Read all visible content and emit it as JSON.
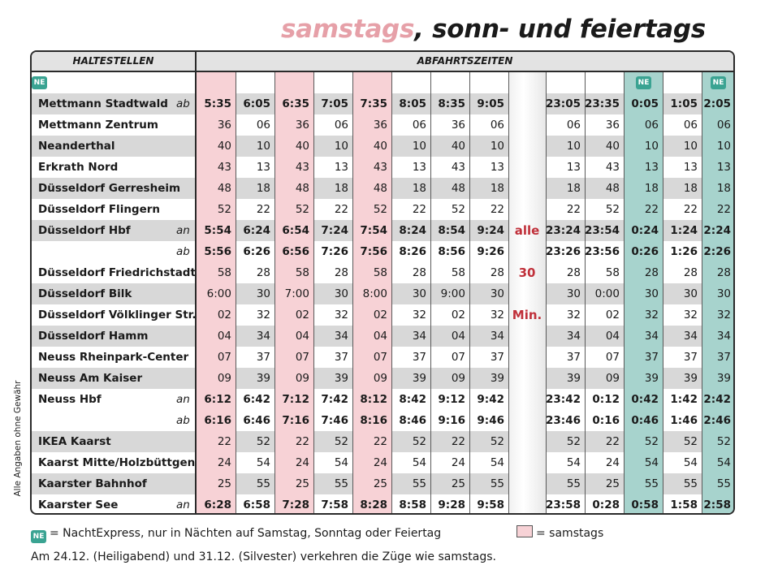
{
  "title": {
    "part1": "samstags",
    "part2": ", sonn- und feiertags"
  },
  "header": {
    "stations": "HALTESTELLEN",
    "times": "ABFAHRTSZEITEN"
  },
  "ne_label": "NE",
  "colors": {
    "pink": "#f7d2d6",
    "green": "#a7d3cd",
    "ne_badge": "#3aa392",
    "alle_red": "#c0303a"
  },
  "ne_columns": [
    10,
    12,
    13
  ],
  "pink_columns": [
    0,
    2,
    4
  ],
  "interval": {
    "line1": "alle",
    "line2": "30",
    "line3": "Min."
  },
  "rows": [
    {
      "station": "Mettmann Stadtwald",
      "mark": "ab",
      "bold": true,
      "times": [
        "5:35",
        "6:05",
        "6:35",
        "7:05",
        "7:35",
        "8:05",
        "8:35",
        "9:05",
        "23:05",
        "23:35",
        "0:05",
        "1:05",
        "2:05"
      ]
    },
    {
      "station": "Mettmann Zentrum",
      "mark": "",
      "bold": false,
      "times": [
        "36",
        "06",
        "36",
        "06",
        "36",
        "06",
        "36",
        "06",
        "06",
        "36",
        "06",
        "06",
        "06"
      ]
    },
    {
      "station": "Neanderthal",
      "mark": "",
      "bold": false,
      "times": [
        "40",
        "10",
        "40",
        "10",
        "40",
        "10",
        "40",
        "10",
        "10",
        "40",
        "10",
        "10",
        "10"
      ]
    },
    {
      "station": "Erkrath Nord",
      "mark": "",
      "bold": false,
      "times": [
        "43",
        "13",
        "43",
        "13",
        "43",
        "13",
        "43",
        "13",
        "13",
        "43",
        "13",
        "13",
        "13"
      ]
    },
    {
      "station": "Düsseldorf Gerresheim",
      "mark": "",
      "bold": false,
      "times": [
        "48",
        "18",
        "48",
        "18",
        "48",
        "18",
        "48",
        "18",
        "18",
        "48",
        "18",
        "18",
        "18"
      ]
    },
    {
      "station": "Düsseldorf Flingern",
      "mark": "",
      "bold": false,
      "times": [
        "52",
        "22",
        "52",
        "22",
        "52",
        "22",
        "52",
        "22",
        "22",
        "52",
        "22",
        "22",
        "22"
      ]
    },
    {
      "station": "Düsseldorf Hbf",
      "mark": "an",
      "bold": true,
      "times": [
        "5:54",
        "6:24",
        "6:54",
        "7:24",
        "7:54",
        "8:24",
        "8:54",
        "9:24",
        "23:24",
        "23:54",
        "0:24",
        "1:24",
        "2:24"
      ]
    },
    {
      "station": "",
      "mark": "ab",
      "bold": true,
      "times": [
        "5:56",
        "6:26",
        "6:56",
        "7:26",
        "7:56",
        "8:26",
        "8:56",
        "9:26",
        "23:26",
        "23:56",
        "0:26",
        "1:26",
        "2:26"
      ]
    },
    {
      "station": "Düsseldorf Friedrichstadt",
      "mark": "",
      "bold": false,
      "times": [
        "58",
        "28",
        "58",
        "28",
        "58",
        "28",
        "58",
        "28",
        "28",
        "58",
        "28",
        "28",
        "28"
      ]
    },
    {
      "station": "Düsseldorf Bilk",
      "mark": "",
      "bold": false,
      "times": [
        "6:00",
        "30",
        "7:00",
        "30",
        "8:00",
        "30",
        "9:00",
        "30",
        "30",
        "0:00",
        "30",
        "30",
        "30"
      ]
    },
    {
      "station": "Düsseldorf Völklinger Str.",
      "mark": "",
      "bold": false,
      "times": [
        "02",
        "32",
        "02",
        "32",
        "02",
        "32",
        "02",
        "32",
        "32",
        "02",
        "32",
        "32",
        "32"
      ]
    },
    {
      "station": "Düsseldorf Hamm",
      "mark": "",
      "bold": false,
      "times": [
        "04",
        "34",
        "04",
        "34",
        "04",
        "34",
        "04",
        "34",
        "34",
        "04",
        "34",
        "34",
        "34"
      ]
    },
    {
      "station": "Neuss Rheinpark-Center",
      "mark": "",
      "bold": false,
      "times": [
        "07",
        "37",
        "07",
        "37",
        "07",
        "37",
        "07",
        "37",
        "37",
        "07",
        "37",
        "37",
        "37"
      ]
    },
    {
      "station": "Neuss Am Kaiser",
      "mark": "",
      "bold": false,
      "times": [
        "09",
        "39",
        "09",
        "39",
        "09",
        "39",
        "09",
        "39",
        "39",
        "09",
        "39",
        "39",
        "39"
      ]
    },
    {
      "station": "Neuss Hbf",
      "mark": "an",
      "bold": true,
      "times": [
        "6:12",
        "6:42",
        "7:12",
        "7:42",
        "8:12",
        "8:42",
        "9:12",
        "9:42",
        "23:42",
        "0:12",
        "0:42",
        "1:42",
        "2:42"
      ]
    },
    {
      "station": "",
      "mark": "ab",
      "bold": true,
      "times": [
        "6:16",
        "6:46",
        "7:16",
        "7:46",
        "8:16",
        "8:46",
        "9:16",
        "9:46",
        "23:46",
        "0:16",
        "0:46",
        "1:46",
        "2:46"
      ]
    },
    {
      "station": "IKEA Kaarst",
      "mark": "",
      "bold": false,
      "times": [
        "22",
        "52",
        "22",
        "52",
        "22",
        "52",
        "22",
        "52",
        "52",
        "22",
        "52",
        "52",
        "52"
      ]
    },
    {
      "station": "Kaarst Mitte/Holzbüttgen",
      "mark": "",
      "bold": false,
      "times": [
        "24",
        "54",
        "24",
        "54",
        "24",
        "54",
        "24",
        "54",
        "54",
        "24",
        "54",
        "54",
        "54"
      ]
    },
    {
      "station": "Kaarster Bahnhof",
      "mark": "",
      "bold": false,
      "times": [
        "25",
        "55",
        "25",
        "55",
        "25",
        "55",
        "25",
        "55",
        "55",
        "25",
        "55",
        "55",
        "55"
      ]
    },
    {
      "station": "Kaarster See",
      "mark": "an",
      "bold": true,
      "times": [
        "6:28",
        "6:58",
        "7:28",
        "7:58",
        "8:28",
        "8:58",
        "9:28",
        "9:58",
        "23:58",
        "0:28",
        "0:58",
        "1:58",
        "2:58"
      ]
    }
  ],
  "shaded_rows": [
    0,
    2,
    4,
    6,
    9,
    11,
    13,
    16,
    18
  ],
  "side_note": "Alle Angaben ohne Gewähr",
  "legend": {
    "ne_text": "= NachtExpress, nur in Nächten auf Samstag, Sonntag oder Feiertag",
    "samstags_text": "= samstags",
    "note": "Am 24.12. (Heiligabend) und 31.12. (Silvester) verkehren die Züge wie samstags."
  }
}
